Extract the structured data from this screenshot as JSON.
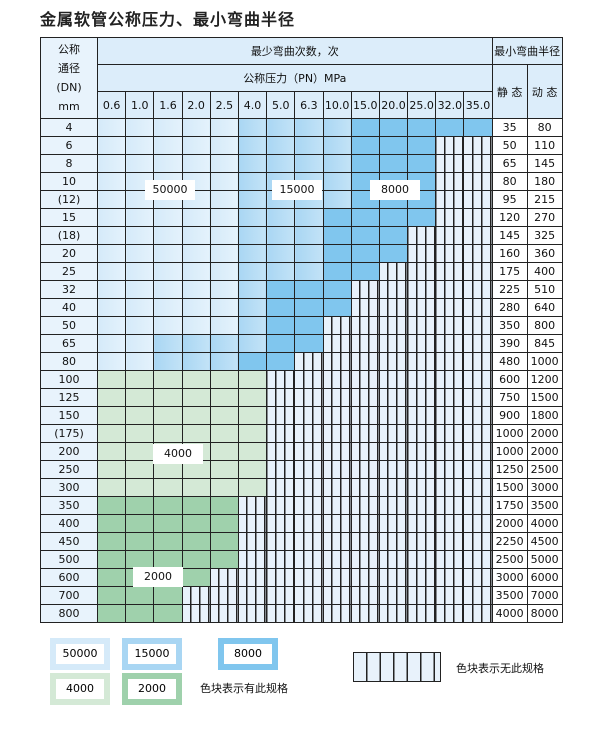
{
  "title": "金属软管公称压力、最小弯曲半径",
  "header": {
    "dn_lines": [
      "公称",
      "通径",
      "(DN)",
      "mm"
    ],
    "bend_count": "最少弯曲次数，次",
    "pressure": "公称压力（PN）MPa",
    "min_radius": "最小弯曲半径",
    "static": "静 态",
    "dynamic": "动 态",
    "pressures": [
      "0.6",
      "1.0",
      "1.6",
      "2.0",
      "2.5",
      "4.0",
      "5.0",
      "6.3",
      "10.0",
      "15.0",
      "20.0",
      "25.0",
      "32.0",
      "35.0"
    ]
  },
  "rows": [
    {
      "dn": "4",
      "s": "35",
      "d": "80",
      "a": 5,
      "b": 9,
      "n": 14
    },
    {
      "dn": "6",
      "s": "50",
      "d": "110",
      "a": 5,
      "b": 9,
      "n": 12
    },
    {
      "dn": "8",
      "s": "65",
      "d": "145",
      "a": 5,
      "b": 9,
      "n": 12
    },
    {
      "dn": "10",
      "s": "80",
      "d": "180",
      "a": 5,
      "b": 9,
      "n": 12
    },
    {
      "dn": "(12)",
      "s": "95",
      "d": "215",
      "a": 5,
      "b": 9,
      "n": 12
    },
    {
      "dn": "15",
      "s": "120",
      "d": "270",
      "a": 5,
      "b": 8,
      "n": 12
    },
    {
      "dn": "(18)",
      "s": "145",
      "d": "325",
      "a": 5,
      "b": 8,
      "n": 11
    },
    {
      "dn": "20",
      "s": "160",
      "d": "360",
      "a": 5,
      "b": 8,
      "n": 11
    },
    {
      "dn": "25",
      "s": "175",
      "d": "400",
      "a": 5,
      "b": 8,
      "n": 10
    },
    {
      "dn": "32",
      "s": "225",
      "d": "510",
      "a": 5,
      "b": 6,
      "n": 9
    },
    {
      "dn": "40",
      "s": "280",
      "d": "640",
      "a": 5,
      "b": 6,
      "n": 9
    },
    {
      "dn": "50",
      "s": "350",
      "d": "800",
      "a": 5,
      "b": 6,
      "n": 8
    },
    {
      "dn": "65",
      "s": "390",
      "d": "845",
      "a": 2,
      "b": 6,
      "n": 8
    },
    {
      "dn": "80",
      "s": "480",
      "d": "1000",
      "a": 2,
      "b": 5,
      "n": 7
    },
    {
      "dn": "100",
      "s": "600",
      "d": "1200",
      "g": 4000,
      "n": 6
    },
    {
      "dn": "125",
      "s": "750",
      "d": "1500",
      "g": 4000,
      "n": 6
    },
    {
      "dn": "150",
      "s": "900",
      "d": "1800",
      "g": 4000,
      "n": 6
    },
    {
      "dn": "(175)",
      "s": "1000",
      "d": "2000",
      "g": 4000,
      "n": 6
    },
    {
      "dn": "200",
      "s": "1000",
      "d": "2000",
      "g": 4000,
      "n": 6
    },
    {
      "dn": "250",
      "s": "1250",
      "d": "2500",
      "g": 4000,
      "n": 6
    },
    {
      "dn": "300",
      "s": "1500",
      "d": "3000",
      "g": 4000,
      "n": 6
    },
    {
      "dn": "350",
      "s": "1750",
      "d": "3500",
      "g": 2000,
      "n": 5
    },
    {
      "dn": "400",
      "s": "2000",
      "d": "4000",
      "g": 2000,
      "n": 5
    },
    {
      "dn": "450",
      "s": "2250",
      "d": "4500",
      "g": 2000,
      "n": 5
    },
    {
      "dn": "500",
      "s": "2500",
      "d": "5000",
      "g": 2000,
      "n": 5
    },
    {
      "dn": "600",
      "s": "3000",
      "d": "6000",
      "g": 2000,
      "n": 4
    },
    {
      "dn": "700",
      "s": "3500",
      "d": "7000",
      "g": 2000,
      "n": 3
    },
    {
      "dn": "800",
      "s": "4000",
      "d": "8000",
      "g": 2000,
      "n": 3
    }
  ],
  "zone_labels": [
    "50000",
    "15000",
    "8000",
    "4000",
    "2000"
  ],
  "colors": {
    "50000": "#d5eaf9",
    "15000": "#a9d6f3",
    "8000": "#80c6ee",
    "4000": "#d4e9d6",
    "2000": "#9fd1ac"
  },
  "legend": {
    "items": [
      "50000",
      "15000",
      "8000",
      "4000",
      "2000"
    ],
    "has_spec": "色块表示有此规格",
    "no_spec": "色块表示无此规格"
  }
}
